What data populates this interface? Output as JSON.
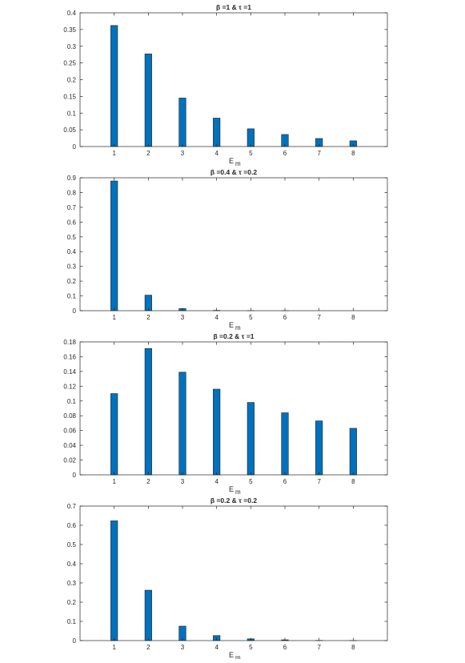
{
  "chart_data": [
    {
      "type": "bar",
      "title": "β =1 & τ =1",
      "xlabel": "E",
      "xlabel_subscript": "m",
      "ylabel": "",
      "categories": [
        "1",
        "2",
        "3",
        "4",
        "5",
        "6",
        "7",
        "8"
      ],
      "values": [
        0.362,
        0.277,
        0.145,
        0.085,
        0.053,
        0.036,
        0.024,
        0.017
      ],
      "ylim": [
        0,
        0.4
      ],
      "yticks": [
        0,
        0.05,
        0.1,
        0.15,
        0.2,
        0.25,
        0.3,
        0.35,
        0.4
      ],
      "ytick_labels": [
        "0",
        "0.05",
        "0.1",
        "0.15",
        "0.2",
        "0.25",
        "0.3",
        "0.35",
        "0.4"
      ],
      "grid": false,
      "bar_color": "#0072BD"
    },
    {
      "type": "bar",
      "title": "β =0.4 & τ =0.2",
      "xlabel": "E",
      "xlabel_subscript": "m",
      "ylabel": "",
      "categories": [
        "1",
        "2",
        "3",
        "4",
        "5",
        "6",
        "7",
        "8"
      ],
      "values": [
        0.878,
        0.105,
        0.014,
        0.002,
        0.0003,
        5e-05,
        1e-05,
        0.0
      ],
      "ylim": [
        0,
        0.9
      ],
      "yticks": [
        0,
        0.1,
        0.2,
        0.3,
        0.4,
        0.5,
        0.6,
        0.7,
        0.8,
        0.9
      ],
      "ytick_labels": [
        "0",
        "0.1",
        "0.2",
        "0.3",
        "0.4",
        "0.5",
        "0.6",
        "0.7",
        "0.8",
        "0.9"
      ],
      "grid": false,
      "bar_color": "#0072BD"
    },
    {
      "type": "bar",
      "title": "β =0.2 & τ =1",
      "xlabel": "E",
      "xlabel_subscript": "m",
      "ylabel": "",
      "categories": [
        "1",
        "2",
        "3",
        "4",
        "5",
        "6",
        "7",
        "8"
      ],
      "values": [
        0.11,
        0.171,
        0.139,
        0.116,
        0.098,
        0.084,
        0.073,
        0.063
      ],
      "ylim": [
        0,
        0.18
      ],
      "yticks": [
        0,
        0.02,
        0.04,
        0.06,
        0.08,
        0.1,
        0.12,
        0.14,
        0.16,
        0.18
      ],
      "ytick_labels": [
        "0",
        "0.02",
        "0.04",
        "0.06",
        "0.08",
        "0.1",
        "0.12",
        "0.14",
        "0.16",
        "0.18"
      ],
      "grid": false,
      "bar_color": "#0072BD"
    },
    {
      "type": "bar",
      "title": "β =0.2 & τ =0.2",
      "xlabel": "E",
      "xlabel_subscript": "m",
      "ylabel": "",
      "categories": [
        "1",
        "2",
        "3",
        "4",
        "5",
        "6",
        "7",
        "8"
      ],
      "values": [
        0.623,
        0.262,
        0.075,
        0.026,
        0.009,
        0.004,
        0.001,
        0.0005
      ],
      "ylim": [
        0,
        0.7
      ],
      "yticks": [
        0,
        0.1,
        0.2,
        0.3,
        0.4,
        0.5,
        0.6,
        0.7
      ],
      "ytick_labels": [
        "0",
        "0.1",
        "0.2",
        "0.3",
        "0.4",
        "0.5",
        "0.6",
        "0.7"
      ],
      "grid": false,
      "bar_color": "#0072BD"
    }
  ]
}
